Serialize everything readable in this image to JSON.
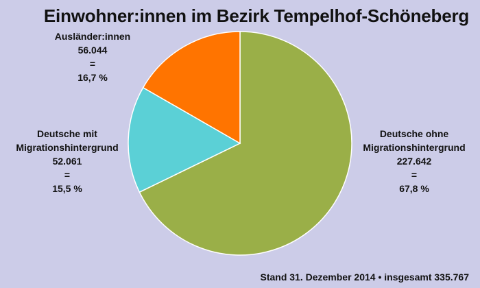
{
  "chart_data": {
    "type": "pie",
    "title": "Einwohner:innen im Bezirk Tempelhof-Schöneberg",
    "slices": [
      {
        "name": "Deutsche ohne Migrationshintergrund",
        "label_lines": [
          "Deutsche ohne",
          "Migrationshintergrund"
        ],
        "value": 227642,
        "value_text": "227.642",
        "eq": "=",
        "percent_text": "67,8 %",
        "percent": 67.8,
        "color": "#9aaf48"
      },
      {
        "name": "Deutsche mit Migrationshintergrund",
        "label_lines": [
          "Deutsche mit",
          "Migrationshintergrund"
        ],
        "value": 52061,
        "value_text": "52.061",
        "eq": "=",
        "percent_text": "15,5 %",
        "percent": 15.5,
        "color": "#5bd0d6"
      },
      {
        "name": "Ausländer:innen",
        "label_lines": [
          "Ausländer:innen"
        ],
        "value": 56044,
        "value_text": "56.044",
        "eq": "=",
        "percent_text": "16,7 %",
        "percent": 16.7,
        "color": "#ff7400"
      }
    ],
    "start_angle": "12 o'clock",
    "direction": "clockwise",
    "slice_border": "#ffffff"
  },
  "footer": "Stand 31. Dezember 2014 • insgesamt 335.767"
}
